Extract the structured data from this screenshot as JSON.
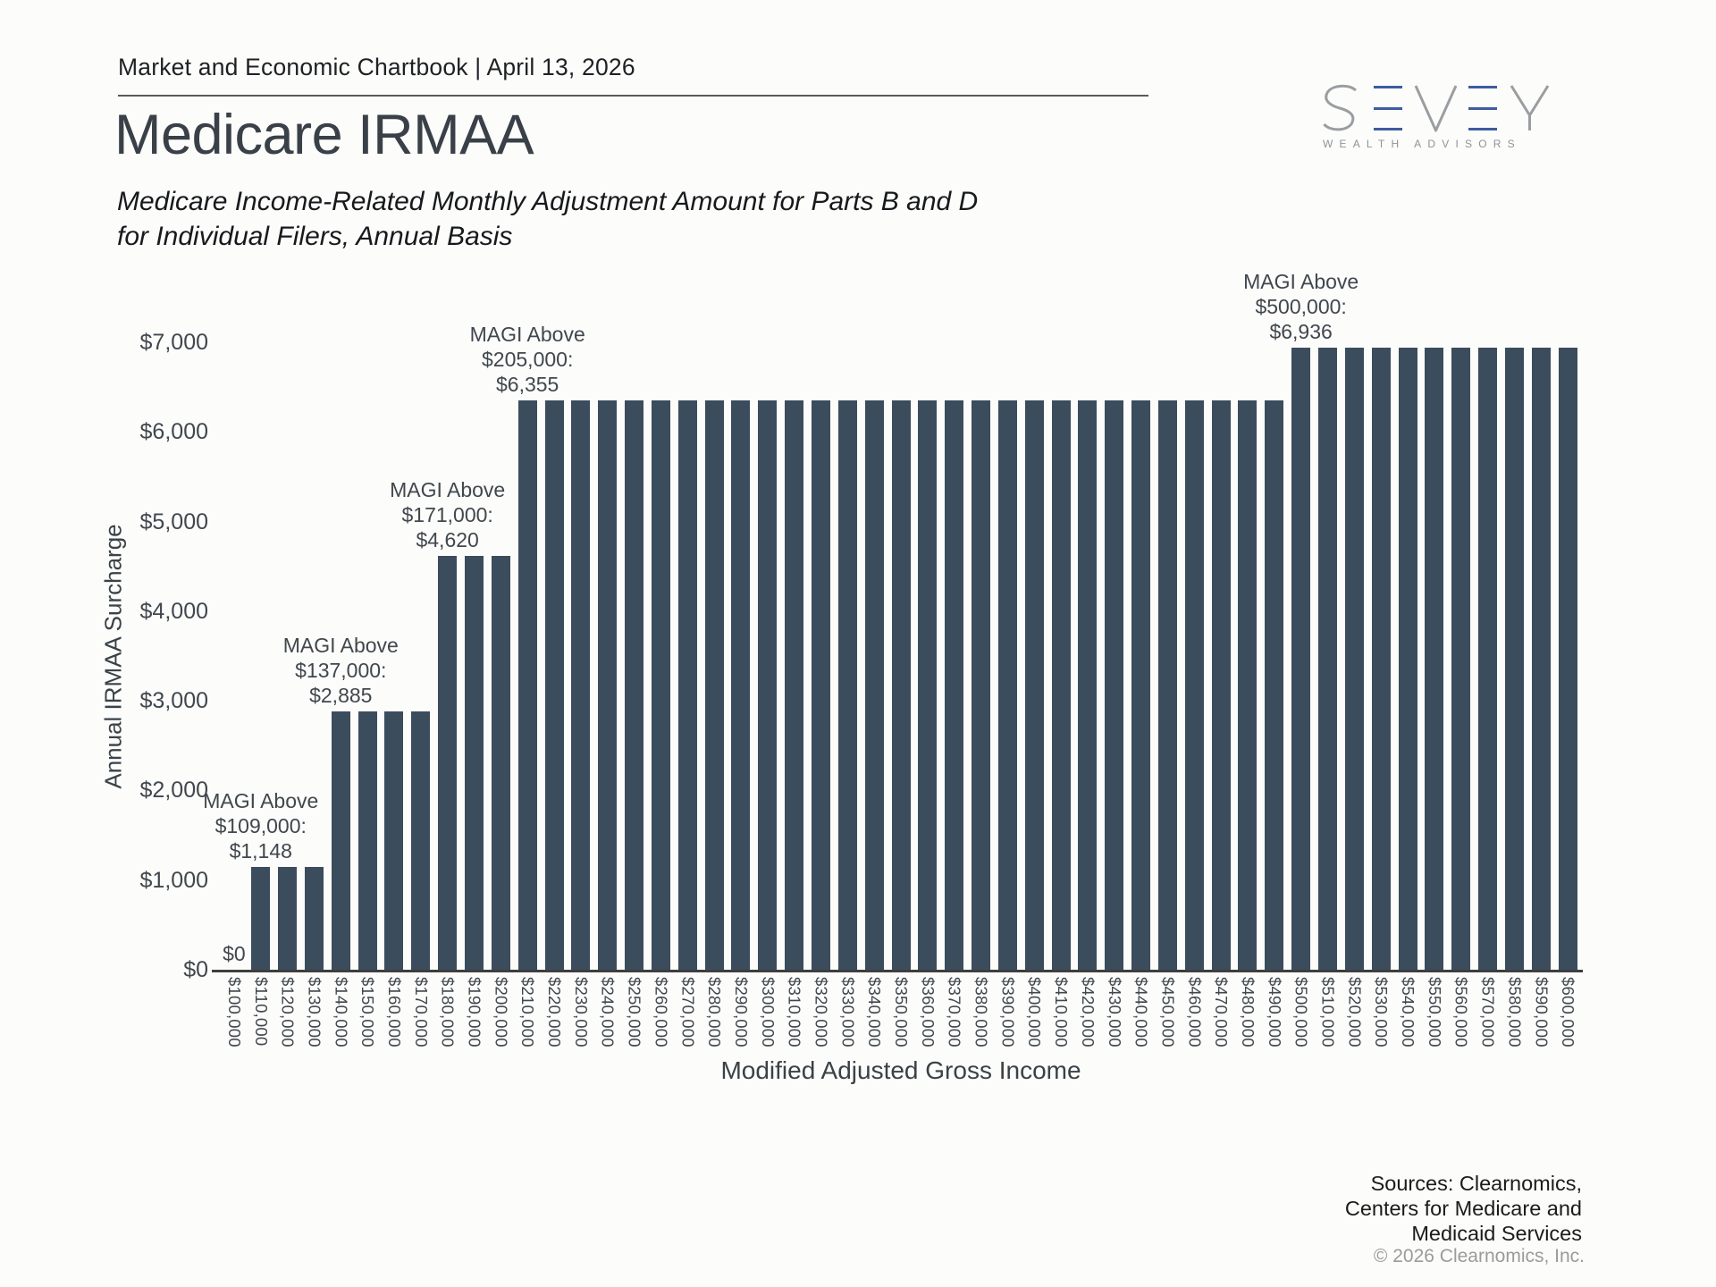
{
  "header": {
    "chartbook_title": "Market and Economic Chartbook | April 13, 2026"
  },
  "title": "Medicare IRMAA",
  "subtitle": {
    "line1": "Medicare Income-Related Monthly Adjustment Amount for Parts B and D",
    "line2": "for Individual Filers, Annual Basis"
  },
  "logo": {
    "name": "SEVEY",
    "tagline": "WEALTH ADVISORS",
    "gray": "#9a9ea1",
    "blue": "#3e5c9e"
  },
  "chart_data": {
    "type": "bar",
    "title": "Medicare IRMAA",
    "xlabel": "Modified Adjusted Gross Income",
    "ylabel": "Annual IRMAA Surcharge",
    "ylim": [
      0,
      7000
    ],
    "grid": false,
    "bar_color": "#3b4c5d",
    "ytick_labels": [
      "$0",
      "$1,000",
      "$2,000",
      "$3,000",
      "$4,000",
      "$5,000",
      "$6,000",
      "$7,000"
    ],
    "categories": [
      "$100,000",
      "$110,000",
      "$120,000",
      "$130,000",
      "$140,000",
      "$150,000",
      "$160,000",
      "$170,000",
      "$180,000",
      "$190,000",
      "$200,000",
      "$210,000",
      "$220,000",
      "$230,000",
      "$240,000",
      "$250,000",
      "$260,000",
      "$270,000",
      "$280,000",
      "$290,000",
      "$300,000",
      "$310,000",
      "$320,000",
      "$330,000",
      "$340,000",
      "$350,000",
      "$360,000",
      "$370,000",
      "$380,000",
      "$390,000",
      "$400,000",
      "$410,000",
      "$420,000",
      "$430,000",
      "$440,000",
      "$450,000",
      "$460,000",
      "$470,000",
      "$480,000",
      "$490,000",
      "$500,000",
      "$510,000",
      "$520,000",
      "$530,000",
      "$540,000",
      "$550,000",
      "$560,000",
      "$570,000",
      "$580,000",
      "$590,000",
      "$600,000"
    ],
    "values": [
      0,
      1148,
      1148,
      1148,
      2885,
      2885,
      2885,
      2885,
      4620,
      4620,
      4620,
      6355,
      6355,
      6355,
      6355,
      6355,
      6355,
      6355,
      6355,
      6355,
      6355,
      6355,
      6355,
      6355,
      6355,
      6355,
      6355,
      6355,
      6355,
      6355,
      6355,
      6355,
      6355,
      6355,
      6355,
      6355,
      6355,
      6355,
      6355,
      6355,
      6936,
      6936,
      6936,
      6936,
      6936,
      6936,
      6936,
      6936,
      6936,
      6936,
      6936
    ],
    "annotations": [
      {
        "category_index": 0,
        "value": 0,
        "lines": [
          "$0"
        ]
      },
      {
        "category_index": 1,
        "value": 1148,
        "lines": [
          "MAGI Above",
          "$109,000:",
          "$1,148"
        ]
      },
      {
        "category_index": 4,
        "value": 2885,
        "lines": [
          "MAGI Above",
          "$137,000:",
          "$2,885"
        ]
      },
      {
        "category_index": 8,
        "value": 4620,
        "lines": [
          "MAGI Above",
          "$171,000:",
          "$4,620"
        ]
      },
      {
        "category_index": 11,
        "value": 6355,
        "lines": [
          "MAGI Above",
          "$205,000:",
          "$6,355"
        ]
      },
      {
        "category_index": 40,
        "value": 6936,
        "lines": [
          "MAGI Above",
          "$500,000:",
          "$6,936"
        ]
      }
    ]
  },
  "footer": {
    "sources_lines": [
      "Sources: Clearnomics,",
      "Centers for Medicare and",
      "Medicaid Services"
    ],
    "copyright": "© 2026 Clearnomics, Inc."
  }
}
